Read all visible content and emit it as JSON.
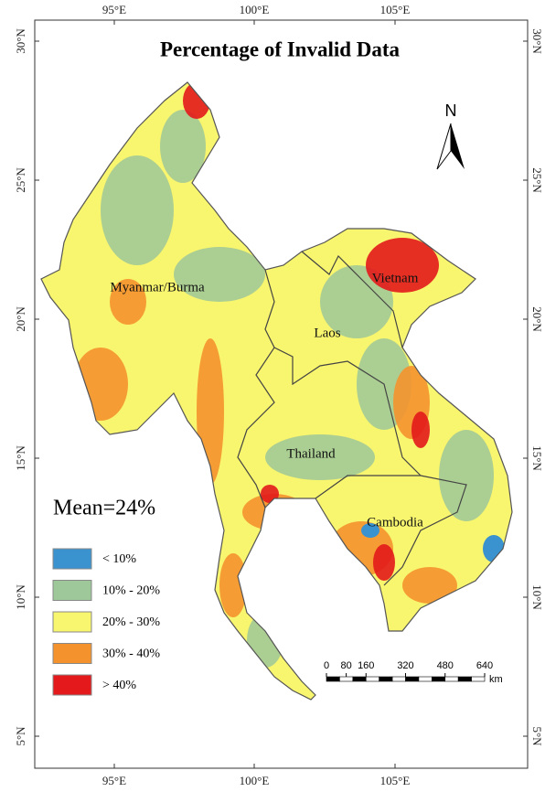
{
  "title": "Percentage of Invalid Data",
  "x_ticks": [
    "95°E",
    "100°E",
    "105°E"
  ],
  "y_ticks": [
    "30°N",
    "25°N",
    "20°N",
    "15°N",
    "10°N",
    "5°N"
  ],
  "countries": [
    "Myanmar/Burma",
    "Laos",
    "Vietnam",
    "Thailand",
    "Cambodia"
  ],
  "mean": "Mean=24%",
  "legend": [
    {
      "label": "< 10%",
      "color": "#3a93cf"
    },
    {
      "label": "10% - 20%",
      "color": "#9ec79a"
    },
    {
      "label": "20% - 30%",
      "color": "#f8f56e"
    },
    {
      "label": "30% - 40%",
      "color": "#f4932e"
    },
    {
      "label": "> 40%",
      "color": "#e3191b"
    }
  ],
  "north": "N",
  "scale": {
    "ticks": [
      0,
      80,
      160,
      320,
      480,
      640
    ],
    "unit": "km"
  }
}
